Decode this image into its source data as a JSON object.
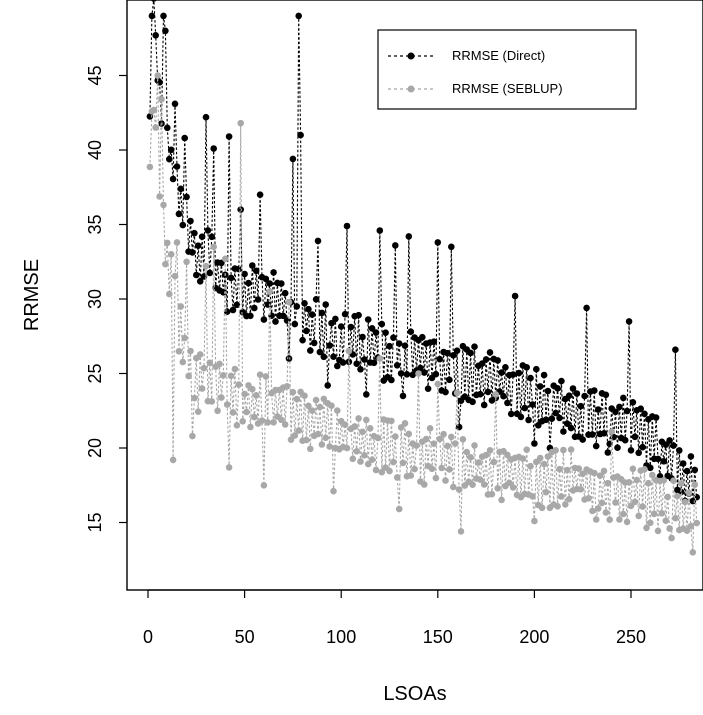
{
  "chart_data": {
    "type": "line",
    "title": "",
    "xlabel": "LSOAs",
    "ylabel": "RRMSE",
    "xlim": [
      -10,
      288
    ],
    "ylim": [
      10,
      49
    ],
    "xticks": [
      0,
      50,
      100,
      150,
      200,
      250
    ],
    "yticks": [
      15,
      20,
      25,
      30,
      35,
      40,
      45
    ],
    "grid": false,
    "legend_position": "top-right",
    "series": [
      {
        "name": "RRMSE (Direct)",
        "color": "#000000",
        "anchors": [
          [
            1,
            43
          ],
          [
            3,
            49
          ],
          [
            6,
            44
          ],
          [
            10,
            41
          ],
          [
            15,
            37
          ],
          [
            20,
            35
          ],
          [
            25,
            33
          ],
          [
            30,
            33
          ],
          [
            40,
            31
          ],
          [
            50,
            30.5
          ],
          [
            60,
            30.5
          ],
          [
            70,
            29.5
          ],
          [
            80,
            28.5
          ],
          [
            90,
            28
          ],
          [
            100,
            27.5
          ],
          [
            110,
            27
          ],
          [
            120,
            26.5
          ],
          [
            130,
            26
          ],
          [
            140,
            26
          ],
          [
            150,
            25.5
          ],
          [
            160,
            25
          ],
          [
            170,
            25
          ],
          [
            180,
            24.5
          ],
          [
            190,
            24
          ],
          [
            200,
            23.5
          ],
          [
            210,
            23
          ],
          [
            220,
            22.5
          ],
          [
            230,
            22
          ],
          [
            240,
            21.5
          ],
          [
            250,
            21.5
          ],
          [
            260,
            20.5
          ],
          [
            270,
            19.5
          ],
          [
            284,
            17
          ]
        ],
        "spread": 1.6,
        "spikes": [
          [
            2,
            49
          ],
          [
            4,
            47.7
          ],
          [
            8,
            49
          ],
          [
            9,
            48
          ],
          [
            14,
            43.1
          ],
          [
            19,
            40.8
          ],
          [
            30,
            42.2
          ],
          [
            34,
            40.1
          ],
          [
            42,
            40.9
          ],
          [
            48,
            36
          ],
          [
            58,
            37
          ],
          [
            75,
            39.4
          ],
          [
            78,
            49
          ],
          [
            79,
            41
          ],
          [
            88,
            33.9
          ],
          [
            103,
            34.9
          ],
          [
            120,
            34.6
          ],
          [
            128,
            33.6
          ],
          [
            135,
            34.2
          ],
          [
            150,
            33.8
          ],
          [
            157,
            33.5
          ],
          [
            190,
            30.2
          ],
          [
            227,
            29.4
          ],
          [
            249,
            28.5
          ],
          [
            273,
            26.6
          ]
        ],
        "dips": [
          [
            48,
            26.2
          ],
          [
            73,
            26
          ],
          [
            93,
            24.2
          ],
          [
            98,
            25.5
          ],
          [
            113,
            23.6
          ],
          [
            132,
            23.5
          ],
          [
            161,
            21.4
          ],
          [
            200,
            20.3
          ],
          [
            208,
            20
          ],
          [
            238,
            19.7
          ],
          [
            265,
            18.1
          ],
          [
            284,
            16.7
          ]
        ]
      },
      {
        "name": "RRMSE (SEBLUP)",
        "color": "#a8a8a8",
        "anchors": [
          [
            1,
            40
          ],
          [
            3,
            42
          ],
          [
            6,
            38
          ],
          [
            10,
            32
          ],
          [
            15,
            29
          ],
          [
            20,
            26
          ],
          [
            25,
            24
          ],
          [
            30,
            25
          ],
          [
            40,
            24
          ],
          [
            50,
            23
          ],
          [
            60,
            23
          ],
          [
            70,
            22.5
          ],
          [
            80,
            22
          ],
          [
            90,
            21.5
          ],
          [
            100,
            21
          ],
          [
            110,
            20.5
          ],
          [
            120,
            20
          ],
          [
            130,
            20
          ],
          [
            140,
            19.5
          ],
          [
            150,
            19.5
          ],
          [
            160,
            19
          ],
          [
            170,
            18.5
          ],
          [
            180,
            18.5
          ],
          [
            190,
            18.5
          ],
          [
            200,
            18
          ],
          [
            210,
            18
          ],
          [
            220,
            18
          ],
          [
            230,
            17.5
          ],
          [
            240,
            17
          ],
          [
            250,
            17
          ],
          [
            260,
            16.5
          ],
          [
            270,
            16
          ],
          [
            284,
            15.5
          ]
        ],
        "spread": 1.7,
        "spikes": [
          [
            2,
            42.6
          ],
          [
            4,
            41.5
          ],
          [
            5,
            45
          ],
          [
            7,
            43.4
          ],
          [
            12,
            33
          ],
          [
            15,
            33.8
          ],
          [
            20,
            32.5
          ],
          [
            30,
            32.2
          ],
          [
            34,
            33.5
          ],
          [
            40,
            32.7
          ],
          [
            48,
            41.8
          ],
          [
            63,
            30.5
          ],
          [
            73,
            29.8
          ],
          [
            104,
            26.5
          ],
          [
            120,
            26
          ],
          [
            140,
            25
          ],
          [
            150,
            24.3
          ],
          [
            160,
            23.7
          ],
          [
            180,
            23.6
          ],
          [
            240,
            21.1
          ]
        ],
        "dips": [
          [
            13,
            19.2
          ],
          [
            23,
            20.8
          ],
          [
            42,
            18.7
          ],
          [
            60,
            17.5
          ],
          [
            73,
            17.3
          ],
          [
            96,
            17.1
          ],
          [
            130,
            15.9
          ],
          [
            162,
            14.4
          ],
          [
            200,
            15.1
          ],
          [
            232,
            15.2
          ],
          [
            270,
            14.6
          ],
          [
            282,
            13
          ]
        ]
      }
    ]
  }
}
